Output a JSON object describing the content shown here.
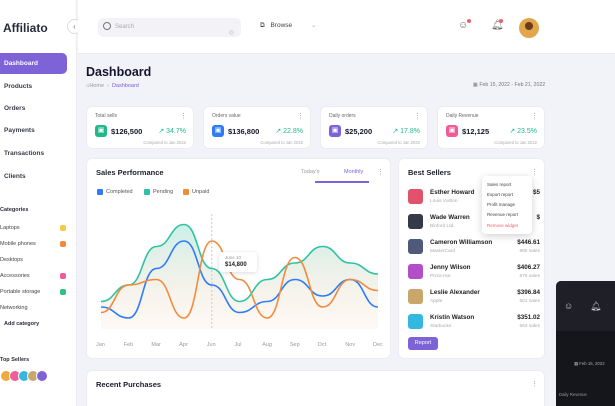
{
  "app": {
    "name": "Affiliato"
  },
  "sidebar": {
    "nav": [
      {
        "label": "Dashboard",
        "active": true
      },
      {
        "label": "Products"
      },
      {
        "label": "Orders"
      },
      {
        "label": "Payments"
      },
      {
        "label": "Transactions"
      },
      {
        "label": "Clients"
      }
    ],
    "categories_heading": "Categories",
    "categories": [
      {
        "label": "Laptops",
        "color": "#f7c948"
      },
      {
        "label": "Mobile phones",
        "color": "#f28b3c"
      },
      {
        "label": "Desktops",
        "color": ""
      },
      {
        "label": "Accessories",
        "color": "#ee5c9a"
      },
      {
        "label": "Portable storage",
        "color": "#2ec27e"
      },
      {
        "label": "Networking",
        "color": ""
      }
    ],
    "add_category": "Add category",
    "top_sellers_heading": "Top Sellers"
  },
  "topbar": {
    "search_placeholder": "Search",
    "browse_label": "Browse"
  },
  "page": {
    "title": "Dashboard",
    "breadcrumb_home": "Home",
    "breadcrumb_current": "Dashboard",
    "date_range": "Feb 15, 2022 - Feb 21, 2022"
  },
  "kpis": [
    {
      "label": "Total sells",
      "value": "$126,500",
      "change": "34.7%",
      "compare": "Compared to Jan 2022",
      "color": "#1fb988"
    },
    {
      "label": "Orders value",
      "value": "$136,800",
      "change": "22.8%",
      "compare": "Compared to Jan 2022",
      "color": "#2f7cf6"
    },
    {
      "label": "Daily orders",
      "value": "$25,200",
      "change": "17.8%",
      "compare": "Compared to Jan 2022",
      "color": "#7d62d8"
    },
    {
      "label": "Daily Revenue",
      "value": "$12,125",
      "change": "23.5%",
      "compare": "Compared to Jan 2022",
      "color": "#ee5c9a"
    }
  ],
  "sales": {
    "title": "Sales Performance",
    "tabs": [
      "Today's",
      "Monthly"
    ],
    "tooltip_label": "June 10",
    "tooltip_value": "$14,800"
  },
  "chart_data": {
    "type": "line",
    "title": "Sales Performance",
    "categories": [
      "Jan",
      "Feb",
      "Mar",
      "Apr",
      "Jun",
      "Jul",
      "Aug",
      "Sep",
      "Oct",
      "Nov",
      "Dec"
    ],
    "series": [
      {
        "name": "Completed",
        "color": "#2f7cf6",
        "values": [
          20,
          10,
          55,
          80,
          40,
          15,
          25,
          45,
          30,
          45,
          20
        ]
      },
      {
        "name": "Pending",
        "color": "#2ec2a4",
        "values": [
          25,
          40,
          75,
          95,
          55,
          25,
          45,
          60,
          75,
          60,
          50
        ]
      },
      {
        "name": "Unpaid",
        "color": "#f28b3c",
        "values": [
          15,
          40,
          45,
          10,
          80,
          45,
          10,
          65,
          20,
          45,
          35
        ]
      }
    ],
    "ylim": [
      0,
      100
    ]
  },
  "best_sellers": {
    "title": "Best Sellers",
    "items": [
      {
        "name": "Esther Howard",
        "sub": "Louis Vuitton",
        "price": "$5",
        "sales": "",
        "color": "#e2536b"
      },
      {
        "name": "Wade Warren",
        "sub": "Binford Ltd.",
        "price": "$",
        "sales": "",
        "color": "#343a4a"
      },
      {
        "name": "Cameron Williamson",
        "sub": "MasterCard",
        "price": "$446.61",
        "sales": "885 sales",
        "color": "#4f5a78"
      },
      {
        "name": "Jenny Wilson",
        "sub": "Pizza Hut",
        "price": "$406.27",
        "sales": "875 sales",
        "color": "#b34dc8"
      },
      {
        "name": "Leslie Alexander",
        "sub": "Apple",
        "price": "$396.84",
        "sales": "601 sales",
        "color": "#c9a66b"
      },
      {
        "name": "Kristin Watson",
        "sub": "Starbucks",
        "price": "$351.02",
        "sales": "563 sales",
        "color": "#35b8e0"
      }
    ],
    "menu": [
      "Sales report",
      "Export report",
      "Profit manage",
      "Revenue report",
      "Remove widget"
    ],
    "report_button": "Report"
  },
  "recent": {
    "title": "Recent Purchases"
  },
  "dark_preview": {
    "date": "Feb 15, 2022",
    "sub": "Daily Revenue"
  }
}
